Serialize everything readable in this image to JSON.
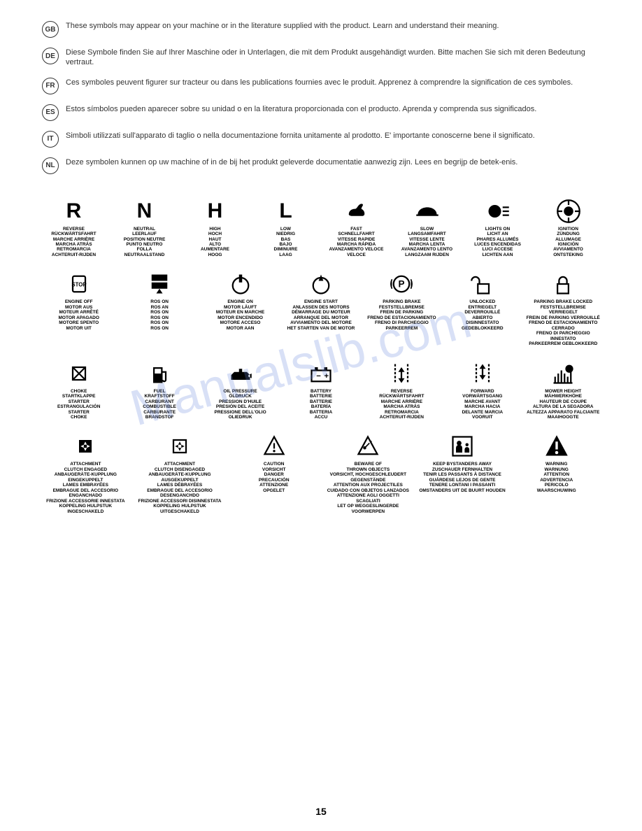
{
  "intro": [
    {
      "lang": "GB",
      "text": "These symbols may appear on your machine or in the literature supplied with the product.  Learn and understand their meaning."
    },
    {
      "lang": "DE",
      "text": "Diese Symbole finden Sie auf Ihrer Maschine oder in Unterlagen, die mit dem Produkt ausgehändigt wurden.  Bitte machen Sie sich mit deren Bedeutung vertraut."
    },
    {
      "lang": "FR",
      "text": "Ces symboles peuvent figurer sur tracteur ou dans les publications fournies avec le produit. Apprenez à comprendre la signification de ces symboles."
    },
    {
      "lang": "ES",
      "text": "Estos símbolos pueden aparecer sobre su unidad o en la literatura proporcionada con el producto.  Aprenda y comprenda sus significados."
    },
    {
      "lang": "IT",
      "text": "Simboli utilizzati sull'apparato di taglio o nella documentazione fornita unitamente al prodotto. E' importante conoscerne bene il significato."
    },
    {
      "lang": "NL",
      "text": "Deze symbolen kunnen op uw machine of in de bij het produkt geleverde documentatie aanwezig zijn.  Lees en begrijp de betek-enis."
    }
  ],
  "row1": [
    {
      "icon": "R",
      "labels": [
        "REVERSE",
        "RÜCKWÄRTSFAHRT",
        "MARCHE ARRIÈRE",
        "MARCHA ATRÁS",
        "RETROMARCIA",
        "ACHTERUIT-RIJDEN"
      ]
    },
    {
      "icon": "N",
      "labels": [
        "NEUTRAL",
        "LEERLAUF",
        "POSITION NEUTRE",
        "PUNTO NEUTRO",
        "FOLLA",
        "NEUTRAALSTAND"
      ]
    },
    {
      "icon": "H",
      "labels": [
        "HIGH",
        "HOCH",
        "HAUT",
        "ALTO",
        "AUMENTARE",
        "HOOG"
      ]
    },
    {
      "icon": "L",
      "labels": [
        "LOW",
        "NIEDRIG",
        "BAS",
        "BAJO",
        "DIMINUIRE",
        "LAAG"
      ]
    },
    {
      "icon": "rabbit",
      "labels": [
        "FAST",
        "SCHNELLFAHRT",
        "VITESSE RAPIDE",
        "MARCHA RÁPIDA",
        "AVANZAMENTO VELOCE",
        "VELOCE"
      ]
    },
    {
      "icon": "turtle",
      "labels": [
        "SLOW",
        "LANGSAMFAHRT",
        "VITESSE LENTE",
        "MARCHA LENTA",
        "AVANZAMENTO LENTO",
        "LANGZAAM RIJDEN"
      ]
    },
    {
      "icon": "lights",
      "labels": [
        "LIGHTS ON",
        "LICHT AN",
        "PHARES ALLUMÉS",
        "LUCES ENCENDIDAS",
        "LUCI ACCESE",
        "LICHTEN AAN"
      ]
    },
    {
      "icon": "ignition",
      "labels": [
        "IGNITION",
        "ZÜNDUNG",
        "ALLUMAGE",
        "IGNICIÓN",
        "AVVIAMENTO",
        "ONTSTEKING"
      ]
    }
  ],
  "row2": [
    {
      "icon": "engineoff",
      "labels": [
        "ENGINE OFF",
        "MOTOR AUS",
        "MOTEUR ARRÊTÉ",
        "MOTOR APAGADO",
        "MOTORE SPENTO",
        "MOTOR UIT"
      ]
    },
    {
      "icon": "ros",
      "labels": [
        "ROS ON",
        "ROS AN",
        "ROS ON",
        "ROS ON",
        "ROS ON",
        "ROS ON"
      ]
    },
    {
      "icon": "engineon",
      "labels": [
        "ENGINE ON",
        "MOTOR LÄUFT",
        "MOTEUR EN MARCHE",
        "MOTOR ENCENDIDO",
        "MOTORE ACCESO",
        "MOTOR AAN"
      ]
    },
    {
      "icon": "enginestart",
      "labels": [
        "ENGINE START",
        "ANLASSEN DES MOTORS",
        "DÉMARRAGE DU MOTEUR",
        "ARRANQUE DEL MOTOR",
        "AVVIAMENTO DEL MOTORE",
        "HET STARTEN VAN DE MOTOR"
      ]
    },
    {
      "icon": "parkbrake",
      "labels": [
        "PARKING BRAKE",
        "FESTSTELLBREMSE",
        "FREIN DE PARKING",
        "FRENO DE ESTACIONAMIENTO",
        "FRENO DI PARCHEGGIO",
        "PARKEERREM"
      ]
    },
    {
      "icon": "unlocked",
      "labels": [
        "UNLOCKED",
        "ENTRIEGELT",
        "DEVERROUILLÉ",
        "ABIERTO",
        "DISINNESTATO",
        "GEDEBLOKKEERD"
      ]
    },
    {
      "icon": "locked",
      "labels": [
        "PARKING BRAKE LOCKED",
        "FESTSTELLBREMSE VERRIEGELT",
        "FREIN DE PARKING VERROUILLÉ",
        "FRENO DE ESTACIONAMIENTO CERRADO",
        "FRENO DI PARCHEGGIO INNESTATO",
        "PARKEERREM GEBLOKKEERD"
      ]
    }
  ],
  "row3": [
    {
      "icon": "choke",
      "labels": [
        "CHOKE",
        "STARTKLAPPE",
        "STARTER",
        "ESTRANGULACIÓN",
        "STARTER",
        "CHOKE"
      ]
    },
    {
      "icon": "fuel",
      "labels": [
        "FUEL",
        "KRAFTSTOFF",
        "CARBURANT",
        "COMBUSTIBLE",
        "CARBURANTE",
        "BRANDSTOF"
      ]
    },
    {
      "icon": "oilpressure",
      "labels": [
        "OIL PRESSURE",
        "ÖLDRUCK",
        "PRESSION D'HUILE",
        "PRESIÓN DEL ACEITE",
        "PRESSIONE DELL'OLIO",
        "OLIEDRUK"
      ]
    },
    {
      "icon": "battery",
      "labels": [
        "BATTERY",
        "BATTERIE",
        "BATTERIE",
        "BATERÍA",
        "BATTERIA",
        "ACCU"
      ]
    },
    {
      "icon": "reverse2",
      "labels": [
        "REVERSE",
        "RÜCKWÄRTSFAHRT",
        "MARCHE ARRIÈRE",
        "MARCHA ATRÁS",
        "RETROMARCIA",
        "ACHTERUIT-RIJDEN"
      ]
    },
    {
      "icon": "forward",
      "labels": [
        "FORWARD",
        "VORWÄRTSGANG",
        "MARCHE AVANT",
        "MARCHA HACIA",
        "DELANTE MARCIA",
        "VOORUIT"
      ]
    },
    {
      "icon": "mowerheight",
      "labels": [
        "MOWER HEIGHT",
        "MÄHWERKHÖHE",
        "HAUTEUR DE COUPE",
        "ALTURA DE LA SEGADORA",
        "ALTEZZA APPARATO FALCIANTE",
        "MAAIHOOGTE"
      ]
    }
  ],
  "row4": [
    {
      "icon": "clutchengaged",
      "labels": [
        "ATTACHMENT",
        "CLUTCH ENGAGED",
        "ANBAUGERÄTE-KUPPLUNG EINGEKUPPELT",
        "LAMES EMBRAYÉES",
        "EMBRAGUE DEL ACCESORIO ENGANCHADO",
        "FRIZIONE ACCESSORIE INNESTATA",
        "KOPPELING HULPSTUK INGESCHAKELD"
      ]
    },
    {
      "icon": "clutchdisengaged",
      "labels": [
        "ATTACHMENT",
        "CLUTCH DISENGAGED",
        "ANBAUGERÄTE-KUPPLUNG AUSGEKUPPELT",
        "LAMES DÉBRAYÉES",
        "EMBRAGUE DEL ACCESORIO DESENGANCHDO",
        "FRIZIONE ACCESSORI DISINNESTATA",
        "KOPPELING HULPSTUK UITGESCHAKELD"
      ]
    },
    {
      "icon": "caution",
      "labels": [
        "CAUTION",
        "VORSICHT",
        "DANGER",
        "PRECAUCIÓN",
        "ATTENZIONE",
        "OPGELET"
      ]
    },
    {
      "icon": "thrownobjects",
      "labels": [
        "BEWARE OF",
        "THROWN OBJECTS",
        "VORSICHT, HOCHGESCHLEUDERT GEGENSTÄNDE",
        "ATTENTION AUX PROJECTILES",
        "CUIDADO CON OBJETOS LANZADOS",
        "ATTENZIONE AGLI OGGETTI SCAGLIATI",
        "LET OP WEGGESLINGERDE VOORWERPEN"
      ]
    },
    {
      "icon": "bystanders",
      "labels": [
        "KEEP BYSTANDERS AWAY",
        "ZUSCHAUER FERNHALTEN",
        "TENIR LES PASSANTS À DISTANCE",
        "GUÁRDESE LEJOS DE GENTE",
        "TENERE LONTANI I PASSANTI",
        "OMSTANDERS UIT DE BUURT HOUDEN"
      ]
    },
    {
      "icon": "warning",
      "labels": [
        "WARNING",
        "WARNUNG",
        "ATTENTION",
        "ADVERTENCIA",
        "PERICOLO",
        "WAARSCHUWING"
      ]
    }
  ],
  "page_number": "15",
  "watermark": "Manualslib.com",
  "styling": {
    "background_color": "#ffffff",
    "text_color": "#000000",
    "intro_fontsize": 11,
    "label_fontsize": 6.5,
    "icon_size": 36,
    "watermark_color": "rgba(100,130,220,0.25)"
  }
}
